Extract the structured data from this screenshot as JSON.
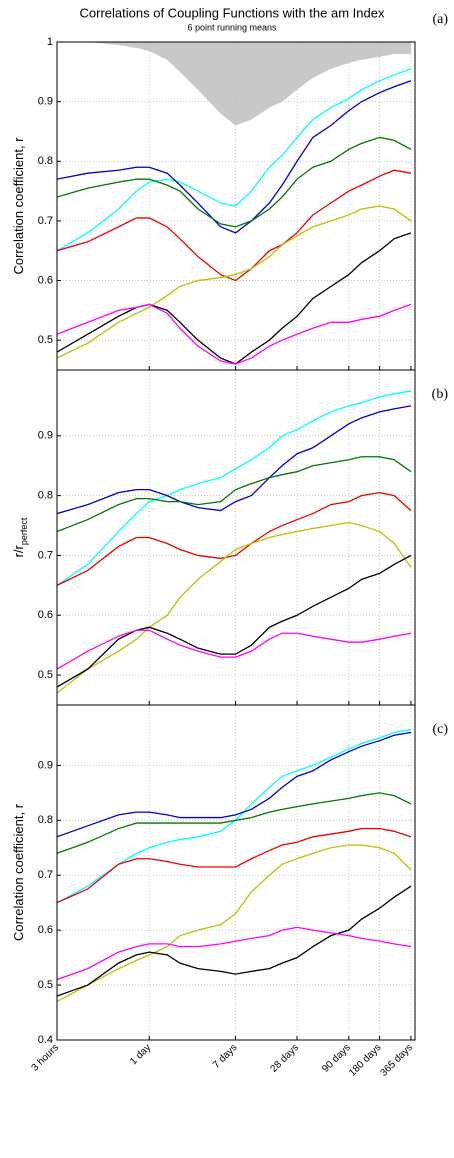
{
  "chart_data": [
    {
      "type": "line",
      "title": "Correlations of Coupling Functions with the am Index",
      "subtitle": "6 point running means",
      "panel_label": "(a)",
      "ylabel": "Correlation coefficient, r",
      "log_x": true,
      "grid": true,
      "xlim": [
        0.125,
        400
      ],
      "xticks": [
        0.125,
        1,
        7,
        28,
        90,
        180,
        365
      ],
      "ylim": [
        0.45,
        1
      ],
      "yticks": [
        0.5,
        0.6,
        0.7,
        0.8,
        0.9,
        1
      ],
      "x": [
        0.125,
        0.25,
        0.5,
        0.75,
        1,
        1.5,
        2,
        3,
        5,
        7,
        10,
        15,
        20,
        28,
        40,
        60,
        90,
        120,
        180,
        250,
        365
      ],
      "shaded": {
        "color": "#c8c8c8",
        "values": [
          1,
          1,
          0.995,
          0.99,
          0.985,
          0.97,
          0.95,
          0.92,
          0.88,
          0.86,
          0.87,
          0.89,
          0.9,
          0.92,
          0.94,
          0.955,
          0.965,
          0.97,
          0.975,
          0.98,
          0.98
        ]
      },
      "series": [
        {
          "color": "#00ffff",
          "values": [
            0.65,
            0.68,
            0.72,
            0.75,
            0.765,
            0.77,
            0.765,
            0.75,
            0.73,
            0.725,
            0.75,
            0.79,
            0.81,
            0.84,
            0.87,
            0.89,
            0.905,
            0.92,
            0.935,
            0.945,
            0.955
          ]
        },
        {
          "color": "#0000cc",
          "values": [
            0.77,
            0.78,
            0.785,
            0.79,
            0.79,
            0.78,
            0.76,
            0.73,
            0.69,
            0.68,
            0.7,
            0.73,
            0.76,
            0.8,
            0.84,
            0.86,
            0.885,
            0.9,
            0.915,
            0.925,
            0.935
          ]
        },
        {
          "color": "#007700",
          "values": [
            0.74,
            0.755,
            0.765,
            0.77,
            0.77,
            0.76,
            0.75,
            0.72,
            0.695,
            0.69,
            0.7,
            0.72,
            0.74,
            0.77,
            0.79,
            0.8,
            0.82,
            0.83,
            0.84,
            0.835,
            0.82
          ]
        },
        {
          "color": "#ee0000",
          "values": [
            0.65,
            0.665,
            0.69,
            0.705,
            0.705,
            0.69,
            0.67,
            0.64,
            0.61,
            0.6,
            0.62,
            0.65,
            0.66,
            0.68,
            0.71,
            0.73,
            0.75,
            0.76,
            0.775,
            0.785,
            0.78
          ]
        },
        {
          "color": "#bfbf00",
          "values": [
            0.47,
            0.495,
            0.53,
            0.545,
            0.555,
            0.575,
            0.59,
            0.6,
            0.605,
            0.61,
            0.62,
            0.64,
            0.66,
            0.675,
            0.69,
            0.7,
            0.71,
            0.72,
            0.725,
            0.72,
            0.7
          ]
        },
        {
          "color": "#000000",
          "values": [
            0.48,
            0.51,
            0.54,
            0.555,
            0.56,
            0.55,
            0.53,
            0.5,
            0.47,
            0.46,
            0.48,
            0.5,
            0.52,
            0.54,
            0.57,
            0.59,
            0.61,
            0.63,
            0.65,
            0.67,
            0.68
          ]
        },
        {
          "color": "#ff00ff",
          "values": [
            0.51,
            0.53,
            0.55,
            0.555,
            0.56,
            0.545,
            0.52,
            0.49,
            0.465,
            0.46,
            0.47,
            0.49,
            0.5,
            0.51,
            0.52,
            0.53,
            0.53,
            0.535,
            0.54,
            0.55,
            0.56
          ]
        }
      ]
    },
    {
      "type": "line",
      "panel_label": "(b)",
      "ylabel": "r/r",
      "ylabel_subscript": "perfect",
      "log_x": true,
      "grid": true,
      "xlim": [
        0.125,
        400
      ],
      "xticks": [
        0.125,
        1,
        7,
        28,
        90,
        180,
        365
      ],
      "ylim": [
        0.45,
        1.01
      ],
      "yticks": [
        0.5,
        0.6,
        0.7,
        0.8,
        0.9
      ],
      "x": [
        0.125,
        0.25,
        0.5,
        0.75,
        1,
        1.5,
        2,
        3,
        5,
        7,
        10,
        15,
        20,
        28,
        40,
        60,
        90,
        120,
        180,
        250,
        365
      ],
      "series": [
        {
          "color": "#00ffff",
          "values": [
            0.65,
            0.685,
            0.74,
            0.77,
            0.79,
            0.8,
            0.81,
            0.82,
            0.83,
            0.845,
            0.86,
            0.88,
            0.9,
            0.91,
            0.925,
            0.94,
            0.95,
            0.955,
            0.965,
            0.97,
            0.975
          ]
        },
        {
          "color": "#0000cc",
          "values": [
            0.77,
            0.785,
            0.805,
            0.81,
            0.81,
            0.8,
            0.79,
            0.78,
            0.775,
            0.79,
            0.8,
            0.83,
            0.85,
            0.87,
            0.88,
            0.9,
            0.92,
            0.93,
            0.94,
            0.945,
            0.95
          ]
        },
        {
          "color": "#007700",
          "values": [
            0.74,
            0.76,
            0.785,
            0.795,
            0.795,
            0.79,
            0.79,
            0.785,
            0.79,
            0.81,
            0.82,
            0.83,
            0.835,
            0.84,
            0.85,
            0.855,
            0.86,
            0.865,
            0.865,
            0.86,
            0.84
          ]
        },
        {
          "color": "#ee0000",
          "values": [
            0.65,
            0.675,
            0.715,
            0.73,
            0.73,
            0.72,
            0.71,
            0.7,
            0.695,
            0.7,
            0.72,
            0.74,
            0.75,
            0.76,
            0.77,
            0.785,
            0.79,
            0.8,
            0.805,
            0.8,
            0.775
          ]
        },
        {
          "color": "#bfbf00",
          "values": [
            0.47,
            0.51,
            0.54,
            0.56,
            0.58,
            0.6,
            0.63,
            0.66,
            0.69,
            0.71,
            0.72,
            0.73,
            0.735,
            0.74,
            0.745,
            0.75,
            0.755,
            0.75,
            0.74,
            0.72,
            0.68
          ]
        },
        {
          "color": "#000000",
          "values": [
            0.48,
            0.51,
            0.56,
            0.575,
            0.58,
            0.57,
            0.56,
            0.545,
            0.535,
            0.535,
            0.55,
            0.58,
            0.59,
            0.6,
            0.615,
            0.63,
            0.645,
            0.66,
            0.67,
            0.685,
            0.7
          ]
        },
        {
          "color": "#ff00ff",
          "values": [
            0.51,
            0.54,
            0.565,
            0.575,
            0.575,
            0.56,
            0.55,
            0.54,
            0.53,
            0.53,
            0.54,
            0.56,
            0.57,
            0.57,
            0.565,
            0.56,
            0.555,
            0.555,
            0.56,
            0.565,
            0.57
          ]
        }
      ]
    },
    {
      "type": "line",
      "panel_label": "(c)",
      "ylabel": "Correlation coefficient, r",
      "log_x": true,
      "grid": true,
      "xlim": [
        0.125,
        400
      ],
      "xticks": [
        {
          "value": 0.125,
          "label": "3 hours"
        },
        {
          "value": 1,
          "label": "1 day"
        },
        {
          "value": 7,
          "label": "7 days"
        },
        {
          "value": 28,
          "label": "28 days"
        },
        {
          "value": 90,
          "label": "90 days"
        },
        {
          "value": 180,
          "label": "180 days"
        },
        {
          "value": 365,
          "label": "365 days"
        }
      ],
      "ylim": [
        0.4,
        1.01
      ],
      "yticks": [
        0.4,
        0.5,
        0.6,
        0.7,
        0.8,
        0.9
      ],
      "x": [
        0.125,
        0.25,
        0.5,
        0.75,
        1,
        1.5,
        2,
        3,
        5,
        7,
        10,
        15,
        20,
        28,
        40,
        60,
        90,
        120,
        180,
        250,
        365
      ],
      "series": [
        {
          "color": "#00ffff",
          "values": [
            0.65,
            0.68,
            0.72,
            0.74,
            0.75,
            0.76,
            0.765,
            0.77,
            0.78,
            0.8,
            0.83,
            0.86,
            0.88,
            0.89,
            0.9,
            0.915,
            0.93,
            0.94,
            0.95,
            0.96,
            0.965
          ]
        },
        {
          "color": "#0000cc",
          "values": [
            0.77,
            0.79,
            0.81,
            0.815,
            0.815,
            0.81,
            0.805,
            0.805,
            0.805,
            0.81,
            0.82,
            0.84,
            0.86,
            0.88,
            0.89,
            0.91,
            0.925,
            0.935,
            0.945,
            0.955,
            0.96
          ]
        },
        {
          "color": "#007700",
          "values": [
            0.74,
            0.76,
            0.785,
            0.795,
            0.795,
            0.795,
            0.795,
            0.795,
            0.795,
            0.8,
            0.805,
            0.815,
            0.82,
            0.825,
            0.83,
            0.835,
            0.84,
            0.845,
            0.85,
            0.845,
            0.83
          ]
        },
        {
          "color": "#ee0000",
          "values": [
            0.65,
            0.675,
            0.72,
            0.73,
            0.73,
            0.725,
            0.72,
            0.715,
            0.715,
            0.715,
            0.73,
            0.745,
            0.755,
            0.76,
            0.77,
            0.775,
            0.78,
            0.785,
            0.785,
            0.78,
            0.77
          ]
        },
        {
          "color": "#bfbf00",
          "values": [
            0.47,
            0.5,
            0.53,
            0.545,
            0.555,
            0.57,
            0.59,
            0.6,
            0.61,
            0.63,
            0.67,
            0.7,
            0.72,
            0.73,
            0.74,
            0.75,
            0.755,
            0.755,
            0.75,
            0.74,
            0.71
          ]
        },
        {
          "color": "#000000",
          "values": [
            0.48,
            0.5,
            0.54,
            0.555,
            0.56,
            0.555,
            0.54,
            0.53,
            0.525,
            0.52,
            0.525,
            0.53,
            0.54,
            0.55,
            0.57,
            0.59,
            0.6,
            0.62,
            0.64,
            0.66,
            0.68
          ]
        },
        {
          "color": "#ff00ff",
          "values": [
            0.51,
            0.53,
            0.56,
            0.57,
            0.575,
            0.575,
            0.57,
            0.57,
            0.575,
            0.58,
            0.585,
            0.59,
            0.6,
            0.605,
            0.6,
            0.595,
            0.59,
            0.585,
            0.58,
            0.575,
            0.57
          ]
        }
      ]
    }
  ]
}
